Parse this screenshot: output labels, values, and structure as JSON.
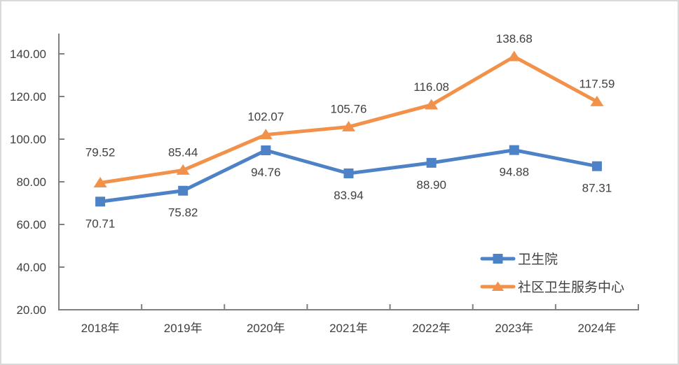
{
  "chart_data": {
    "type": "line",
    "categories": [
      "2018年",
      "2019年",
      "2020年",
      "2021年",
      "2022年",
      "2023年",
      "2024年"
    ],
    "series": [
      {
        "name": "卫生院",
        "marker": "square",
        "color": "#4e82c6",
        "values": [
          70.71,
          75.82,
          94.76,
          83.94,
          88.9,
          94.88,
          87.31
        ],
        "data_labels": [
          "70.71",
          "75.82",
          "94.76",
          "83.94",
          "88.90",
          "94.88",
          "87.31"
        ],
        "label_position": "below",
        "label_dy_overrides": {}
      },
      {
        "name": "社区卫生服务中心",
        "marker": "triangle",
        "color": "#f2924a",
        "values": [
          79.52,
          85.44,
          102.07,
          105.76,
          116.08,
          138.68,
          117.59
        ],
        "data_labels": [
          "79.52",
          "85.44",
          "102.07",
          "105.76",
          "116.08",
          "138.68",
          "117.59"
        ],
        "label_position": "above",
        "label_dy_overrides": {
          "0": -44
        }
      }
    ],
    "y_axis": {
      "min": 20,
      "max": 140,
      "step": 20,
      "tick_labels": [
        "20.00",
        "40.00",
        "60.00",
        "80.00",
        "100.00",
        "120.00",
        "140.00"
      ]
    },
    "x_axis": {
      "tick_labels": [
        "2018年",
        "2019年",
        "2020年",
        "2021年",
        "2022年",
        "2023年",
        "2024年"
      ]
    },
    "grid": false,
    "legend_position": "inside-right",
    "legend": [
      "卫生院",
      "社区卫生服务中心"
    ],
    "colors": {
      "axis": "#808080",
      "text": "#404040",
      "series_blue": "#4e82c6",
      "series_orange": "#f2924a",
      "frame_border": "#d9d9d9"
    }
  }
}
